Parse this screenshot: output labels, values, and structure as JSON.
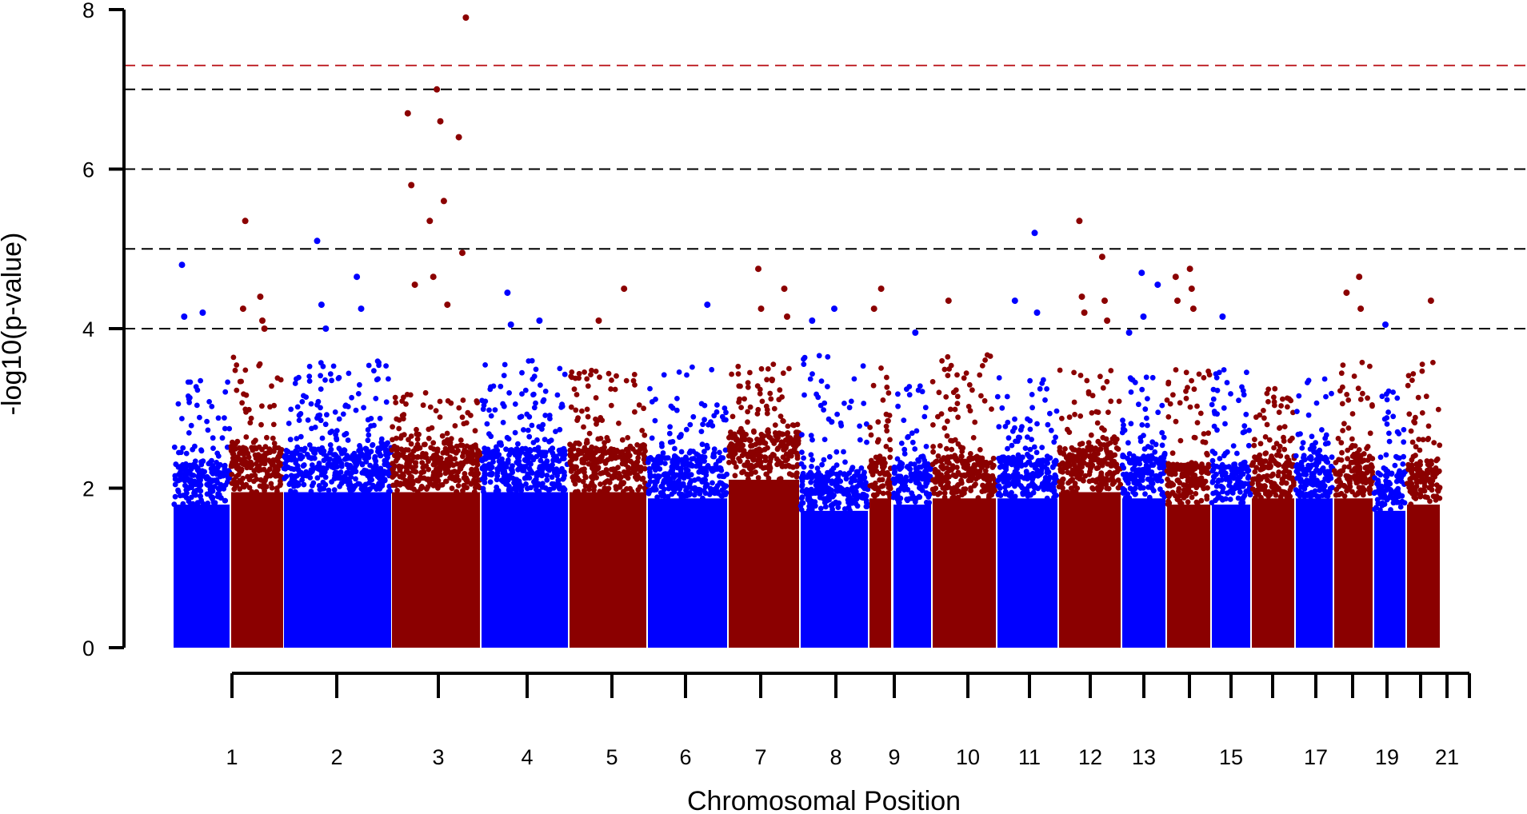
{
  "chart_data": {
    "type": "scatter",
    "subtype": "manhattan",
    "title": "",
    "xlabel": "Chromosomal Position",
    "ylabel": "-log10(p-value)",
    "ylim": [
      0,
      8
    ],
    "y_ticks": [
      0,
      2,
      4,
      6,
      8
    ],
    "grid": false,
    "legend": "none",
    "colors": {
      "odd": "#0000ff",
      "even": "#8b0000",
      "genome_wide_line": "#c0272d",
      "suggestive_line": "#000000"
    },
    "threshold_lines": [
      {
        "y": 7.3,
        "style": "dashed",
        "color": "#c0272d"
      },
      {
        "y": 7,
        "style": "dashed",
        "color": "#000000"
      },
      {
        "y": 6,
        "style": "dashed",
        "color": "#000000"
      },
      {
        "y": 5,
        "style": "dashed",
        "color": "#000000"
      },
      {
        "y": 4,
        "style": "dashed",
        "color": "#000000"
      }
    ],
    "chromosomes": [
      {
        "chr": 1,
        "label": "1",
        "color": "blue",
        "typical_max": 2.3,
        "cluster_max": 3.4
      },
      {
        "chr": 2,
        "label": "2",
        "color": "darkred",
        "typical_max": 2.5,
        "cluster_max": 3.7
      },
      {
        "chr": 3,
        "label": "3",
        "color": "blue",
        "typical_max": 2.5,
        "cluster_max": 3.6
      },
      {
        "chr": 4,
        "label": "4",
        "color": "darkred",
        "typical_max": 2.5,
        "cluster_max": 3.2
      },
      {
        "chr": 5,
        "label": "5",
        "color": "blue",
        "typical_max": 2.5,
        "cluster_max": 3.6
      },
      {
        "chr": 6,
        "label": "6",
        "color": "darkred",
        "typical_max": 2.5,
        "cluster_max": 3.5
      },
      {
        "chr": 7,
        "label": "7",
        "color": "blue",
        "typical_max": 2.4,
        "cluster_max": 3.6
      },
      {
        "chr": 8,
        "label": "8",
        "color": "darkred",
        "typical_max": 2.7,
        "cluster_max": 3.6
      },
      {
        "chr": 9,
        "label": "9",
        "color": "blue",
        "typical_max": 2.2,
        "cluster_max": 3.7
      },
      {
        "chr": 10,
        "label": "10",
        "color": "darkred",
        "typical_max": 2.4,
        "cluster_max": 3.6
      },
      {
        "chr": 11,
        "label": "11",
        "color": "blue",
        "typical_max": 2.3,
        "cluster_max": 3.3
      },
      {
        "chr": 12,
        "label": "12",
        "color": "darkred",
        "typical_max": 2.4,
        "cluster_max": 3.7
      },
      {
        "chr": 13,
        "label": "13",
        "color": "blue",
        "typical_max": 2.4,
        "cluster_max": 3.4
      },
      {
        "chr": 14,
        "label": "",
        "color": "darkred",
        "typical_max": 2.5,
        "cluster_max": 3.5
      },
      {
        "chr": 15,
        "label": "15",
        "color": "blue",
        "typical_max": 2.4,
        "cluster_max": 3.4
      },
      {
        "chr": 16,
        "label": "",
        "color": "darkred",
        "typical_max": 2.3,
        "cluster_max": 3.5
      },
      {
        "chr": 17,
        "label": "17",
        "color": "blue",
        "typical_max": 2.3,
        "cluster_max": 3.6
      },
      {
        "chr": 18,
        "label": "",
        "color": "darkred",
        "typical_max": 2.4,
        "cluster_max": 3.3
      },
      {
        "chr": 19,
        "label": "19",
        "color": "blue",
        "typical_max": 2.4,
        "cluster_max": 3.4
      },
      {
        "chr": 20,
        "label": "",
        "color": "darkred",
        "typical_max": 2.4,
        "cluster_max": 3.6
      },
      {
        "chr": 21,
        "label": "21",
        "color": "blue",
        "typical_max": 2.2,
        "cluster_max": 3.3
      },
      {
        "chr": 22,
        "label": "",
        "color": "darkred",
        "typical_max": 2.3,
        "cluster_max": 3.6
      }
    ],
    "notable_points": [
      {
        "chr": 1,
        "y": 4.8
      },
      {
        "chr": 1,
        "y": 4.2
      },
      {
        "chr": 1,
        "y": 4.15
      },
      {
        "chr": 2,
        "y": 4.4
      },
      {
        "chr": 2,
        "y": 4.25
      },
      {
        "chr": 2,
        "y": 4.1
      },
      {
        "chr": 2,
        "y": 5.35
      },
      {
        "chr": 2,
        "y": 4.0
      },
      {
        "chr": 3,
        "y": 5.1
      },
      {
        "chr": 3,
        "y": 4.65
      },
      {
        "chr": 3,
        "y": 4.3
      },
      {
        "chr": 3,
        "y": 4.25
      },
      {
        "chr": 3,
        "y": 4.0
      },
      {
        "chr": 4,
        "y": 6.4
      },
      {
        "chr": 4,
        "y": 5.35
      },
      {
        "chr": 4,
        "y": 4.95
      },
      {
        "chr": 4,
        "y": 4.65
      },
      {
        "chr": 4,
        "y": 7.9
      },
      {
        "chr": 4,
        "y": 7.0
      },
      {
        "chr": 4,
        "y": 6.7
      },
      {
        "chr": 4,
        "y": 6.6
      },
      {
        "chr": 4,
        "y": 5.8
      },
      {
        "chr": 4,
        "y": 5.6
      },
      {
        "chr": 4,
        "y": 4.55
      },
      {
        "chr": 4,
        "y": 4.3
      },
      {
        "chr": 5,
        "y": 4.45
      },
      {
        "chr": 5,
        "y": 4.1
      },
      {
        "chr": 5,
        "y": 4.05
      },
      {
        "chr": 6,
        "y": 4.5
      },
      {
        "chr": 6,
        "y": 4.1
      },
      {
        "chr": 7,
        "y": 4.3
      },
      {
        "chr": 8,
        "y": 4.75
      },
      {
        "chr": 8,
        "y": 4.5
      },
      {
        "chr": 8,
        "y": 4.25
      },
      {
        "chr": 8,
        "y": 4.15
      },
      {
        "chr": 9,
        "y": 4.25
      },
      {
        "chr": 9,
        "y": 4.1
      },
      {
        "chr": 10,
        "y": 4.5
      },
      {
        "chr": 10,
        "y": 4.25
      },
      {
        "chr": 11,
        "y": 3.95
      },
      {
        "chr": 12,
        "y": 4.35
      },
      {
        "chr": 13,
        "y": 5.2
      },
      {
        "chr": 13,
        "y": 4.35
      },
      {
        "chr": 13,
        "y": 4.2
      },
      {
        "chr": 14,
        "y": 5.35
      },
      {
        "chr": 14,
        "y": 4.9
      },
      {
        "chr": 14,
        "y": 4.4
      },
      {
        "chr": 14,
        "y": 4.35
      },
      {
        "chr": 14,
        "y": 4.2
      },
      {
        "chr": 14,
        "y": 4.1
      },
      {
        "chr": 15,
        "y": 4.7
      },
      {
        "chr": 15,
        "y": 4.55
      },
      {
        "chr": 15,
        "y": 4.15
      },
      {
        "chr": 15,
        "y": 3.95
      },
      {
        "chr": 16,
        "y": 4.75
      },
      {
        "chr": 16,
        "y": 4.65
      },
      {
        "chr": 16,
        "y": 4.5
      },
      {
        "chr": 16,
        "y": 4.35
      },
      {
        "chr": 16,
        "y": 4.25
      },
      {
        "chr": 17,
        "y": 4.15
      },
      {
        "chr": 20,
        "y": 4.65
      },
      {
        "chr": 20,
        "y": 4.45
      },
      {
        "chr": 20,
        "y": 4.25
      },
      {
        "chr": 21,
        "y": 4.05
      },
      {
        "chr": 22,
        "y": 4.35
      }
    ]
  }
}
